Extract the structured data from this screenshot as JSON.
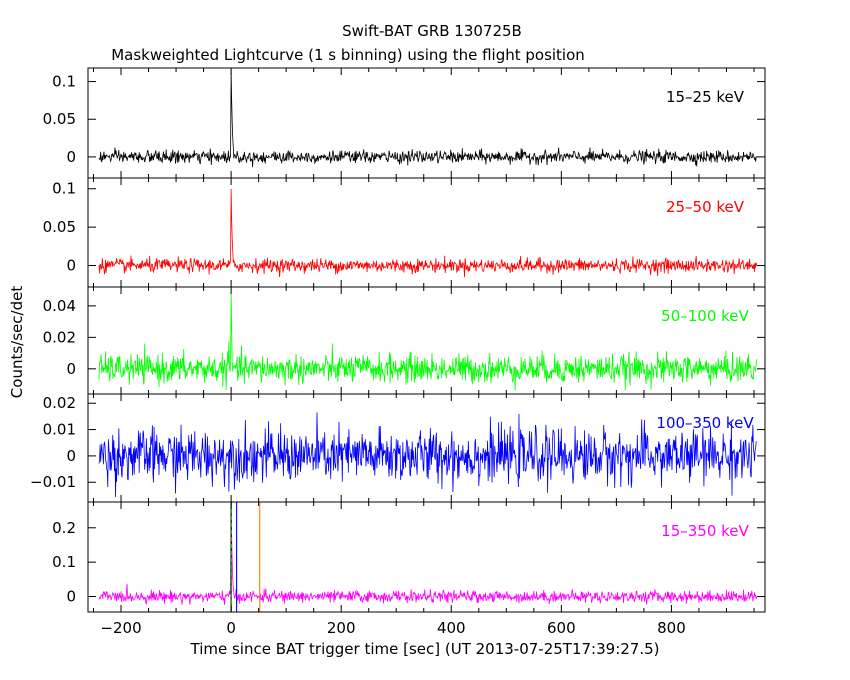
{
  "chart_data": {
    "type": "line",
    "title": "Swift-BAT GRB 130725B",
    "subtitle": "Maskweighted Lightcurve (1 s binning) using the flight position",
    "xlabel": "Time since BAT trigger time [sec] (UT 2013-07-25T17:39:27.5)",
    "ylabel": "Counts/sec/det",
    "xlim": [
      -260,
      970
    ],
    "x_ticks": [
      -200,
      0,
      200,
      400,
      600,
      800
    ],
    "x_tick_labels": [
      "−200",
      "0",
      "200",
      "400",
      "600",
      "800"
    ],
    "data_range": [
      -240,
      955
    ],
    "grid": false,
    "panels": [
      {
        "name": "15–25 keV",
        "color": "#000000",
        "ylim": [
          -0.028,
          0.118
        ],
        "y_ticks": [
          0,
          0.05,
          0.1
        ],
        "y_tick_labels": [
          "0",
          "0.05",
          "0.1"
        ],
        "noise_sigma": 0.0042,
        "peaks": [
          {
            "t": 0,
            "v": 0.115
          },
          {
            "t": 1,
            "v": 0.075
          },
          {
            "t": 2,
            "v": 0.045
          },
          {
            "t": 3,
            "v": 0.025
          },
          {
            "t": 4,
            "v": 0.012
          }
        ]
      },
      {
        "name": "25–50 keV",
        "color": "#ff0000",
        "ylim": [
          -0.028,
          0.114
        ],
        "y_ticks": [
          0,
          0.05,
          0.1
        ],
        "y_tick_labels": [
          "0",
          "0.05",
          "0.1"
        ],
        "noise_sigma": 0.0045,
        "peaks": [
          {
            "t": 0,
            "v": 0.1
          },
          {
            "t": 1,
            "v": 0.06
          },
          {
            "t": 2,
            "v": 0.035
          },
          {
            "t": 3,
            "v": 0.018
          }
        ]
      },
      {
        "name": "50–100 keV",
        "color": "#00ff00",
        "ylim": [
          -0.016,
          0.052
        ],
        "y_ticks": [
          0,
          0.02,
          0.04
        ],
        "y_tick_labels": [
          "0",
          "0.02",
          "0.04"
        ],
        "noise_sigma": 0.0045,
        "peaks": [
          {
            "t": 0,
            "v": 0.048
          },
          {
            "t": 1,
            "v": 0.025
          },
          {
            "t": -4,
            "v": 0.018
          }
        ]
      },
      {
        "name": "100–350 keV",
        "color": "#0000ff",
        "ylim": [
          -0.0175,
          0.0235
        ],
        "y_ticks": [
          -0.01,
          0,
          0.01,
          0.02
        ],
        "y_tick_labels": [
          "−0.01",
          "0",
          "0.01",
          "0.02"
        ],
        "noise_sigma": 0.005,
        "peaks": []
      },
      {
        "name": "15–350 keV",
        "color": "#ff00ff",
        "ylim": [
          -0.045,
          0.275
        ],
        "y_ticks": [
          0,
          0.1,
          0.2
        ],
        "y_tick_labels": [
          "0",
          "0.1",
          "0.2"
        ],
        "noise_sigma": 0.0085,
        "peaks": [
          {
            "t": 0,
            "v": 0.27
          },
          {
            "t": 1,
            "v": 0.17
          },
          {
            "t": 2,
            "v": 0.1
          },
          {
            "t": 3,
            "v": 0.05
          },
          {
            "t": 4,
            "v": 0.025
          }
        ],
        "markers": [
          {
            "t": 0,
            "color": "#000000",
            "style": "solid"
          },
          {
            "t": 0.7,
            "color": "#00c000",
            "style": "dashed"
          },
          {
            "t": 10,
            "color": "#0000ff",
            "style": "solid"
          },
          {
            "t": 52,
            "color": "#ff8000",
            "style": "solid"
          }
        ]
      }
    ]
  }
}
